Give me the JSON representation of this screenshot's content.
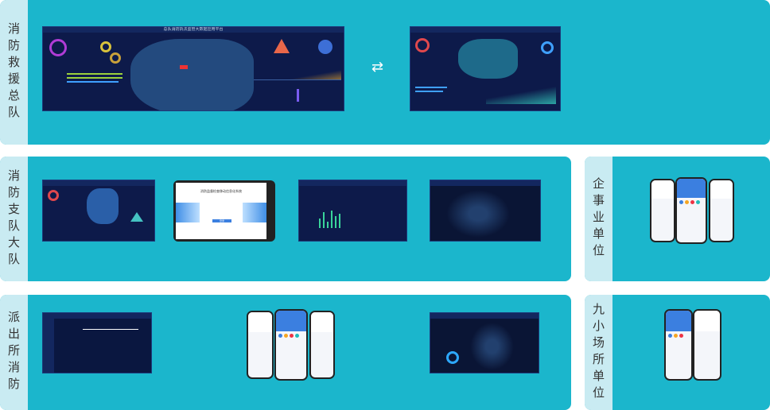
{
  "rows": [
    {
      "label": "消防救援总队",
      "screen_title": "总队消防执法监管大数据应用平台",
      "swap_icon": "swap-arrows-icon"
    },
    {
      "label": "消防支队大队",
      "tablet_title": "消防监督检查移动信息化系统",
      "login_button": "登录"
    },
    {
      "label": "派出所消防"
    }
  ],
  "side": [
    {
      "label": "企事业单位"
    },
    {
      "label": "九小场所单位"
    }
  ],
  "colors": {
    "panel": "#1bb6cc",
    "label_strip": "#c9ebf2",
    "screen_bg": "#0d1a4a"
  }
}
